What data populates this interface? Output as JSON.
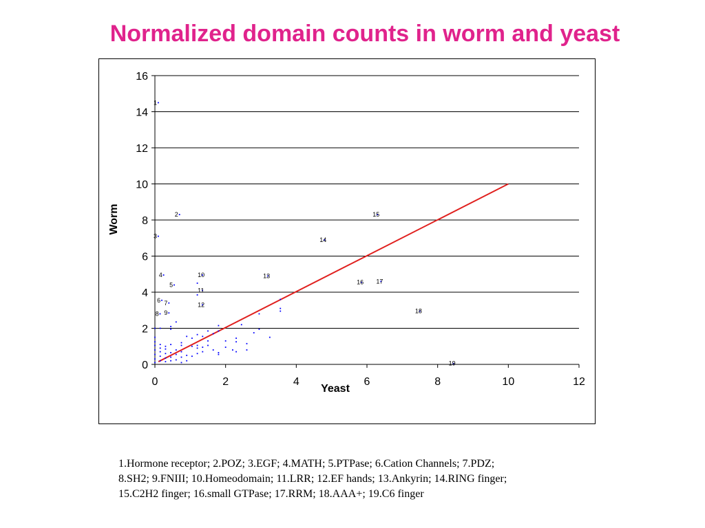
{
  "title": "Normalized domain counts in worm and yeast",
  "legend_lines": [
    "1.Hormone receptor; 2.POZ; 3.EGF; 4.MATH; 5.PTPase; 6.Cation Channels; 7.PDZ;",
    "8.SH2; 9.FNIII; 10.Homeodomain; 11.LRR; 12.EF hands; 13.Ankyrin; 14.RING finger;",
    "15.C2H2 finger; 16.small GTPase; 17.RRM; 18.AAA+; 19.C6 finger"
  ],
  "colors": {
    "title": "#e0238c",
    "points": "#0000ff",
    "trend_line": "#e0201e"
  },
  "chart_data": {
    "type": "scatter",
    "xlabel": "Yeast",
    "ylabel": "Worm",
    "xlim": [
      0,
      12
    ],
    "ylim": [
      0,
      16
    ],
    "x_ticks": [
      "0",
      "2",
      "4",
      "6",
      "8",
      "10",
      "12"
    ],
    "y_ticks": [
      "0",
      "2",
      "4",
      "6",
      "8",
      "10",
      "12",
      "14",
      "16"
    ],
    "grid": "horizontal",
    "trend_line": {
      "x": [
        0.1,
        10
      ],
      "y": [
        0.15,
        10
      ]
    },
    "labeled_points": [
      {
        "label": "1",
        "x": 0.0,
        "y": 14.5
      },
      {
        "label": "2",
        "x": 0.6,
        "y": 8.3
      },
      {
        "label": "3",
        "x": 0.0,
        "y": 7.1
      },
      {
        "label": "4",
        "x": 0.15,
        "y": 4.95
      },
      {
        "label": "5",
        "x": 0.45,
        "y": 4.4
      },
      {
        "label": "6",
        "x": 0.1,
        "y": 3.55
      },
      {
        "label": "7",
        "x": 0.3,
        "y": 3.4
      },
      {
        "label": "8",
        "x": 0.05,
        "y": 2.8
      },
      {
        "label": "9",
        "x": 0.3,
        "y": 2.85
      },
      {
        "label": "10",
        "x": 1.25,
        "y": 4.95
      },
      {
        "label": "11",
        "x": 1.25,
        "y": 4.1
      },
      {
        "label": "12",
        "x": 1.25,
        "y": 3.3
      },
      {
        "label": "13",
        "x": 3.1,
        "y": 4.9
      },
      {
        "label": "14",
        "x": 4.7,
        "y": 6.9
      },
      {
        "label": "15",
        "x": 6.2,
        "y": 8.3
      },
      {
        "label": "16",
        "x": 5.75,
        "y": 4.55
      },
      {
        "label": "17",
        "x": 6.3,
        "y": 4.6
      },
      {
        "label": "18",
        "x": 7.4,
        "y": 2.95
      },
      {
        "label": "19",
        "x": 8.35,
        "y": 0.05
      }
    ],
    "points": [
      [
        0.0,
        0.1
      ],
      [
        0.0,
        0.3
      ],
      [
        0.0,
        0.55
      ],
      [
        0.0,
        0.8
      ],
      [
        0.0,
        1.05
      ],
      [
        0.0,
        1.25
      ],
      [
        0.0,
        1.5
      ],
      [
        0.0,
        2.0
      ],
      [
        0.15,
        0.2
      ],
      [
        0.15,
        0.45
      ],
      [
        0.15,
        0.7
      ],
      [
        0.15,
        0.9
      ],
      [
        0.15,
        1.1
      ],
      [
        0.15,
        2.0
      ],
      [
        0.3,
        0.15
      ],
      [
        0.3,
        0.35
      ],
      [
        0.3,
        0.6
      ],
      [
        0.3,
        0.85
      ],
      [
        0.3,
        1.0
      ],
      [
        0.45,
        0.2
      ],
      [
        0.45,
        0.4
      ],
      [
        0.45,
        0.65
      ],
      [
        0.45,
        1.1
      ],
      [
        0.45,
        1.95
      ],
      [
        0.45,
        2.1
      ],
      [
        0.6,
        0.25
      ],
      [
        0.6,
        0.55
      ],
      [
        0.6,
        0.8
      ],
      [
        0.6,
        2.35
      ],
      [
        0.75,
        0.1
      ],
      [
        0.75,
        0.4
      ],
      [
        0.75,
        0.7
      ],
      [
        0.75,
        1.05
      ],
      [
        0.75,
        1.2
      ],
      [
        0.9,
        0.2
      ],
      [
        0.9,
        0.5
      ],
      [
        0.9,
        1.55
      ],
      [
        1.05,
        0.45
      ],
      [
        1.05,
        1.0
      ],
      [
        1.05,
        1.45
      ],
      [
        1.2,
        0.6
      ],
      [
        1.2,
        0.9
      ],
      [
        1.2,
        1.05
      ],
      [
        1.2,
        1.65
      ],
      [
        1.2,
        4.5
      ],
      [
        1.2,
        3.85
      ],
      [
        1.35,
        0.7
      ],
      [
        1.35,
        0.95
      ],
      [
        1.35,
        1.55
      ],
      [
        1.5,
        1.05
      ],
      [
        1.5,
        1.3
      ],
      [
        1.5,
        1.85
      ],
      [
        1.65,
        0.8
      ],
      [
        1.65,
        1.7
      ],
      [
        1.8,
        0.55
      ],
      [
        1.8,
        0.65
      ],
      [
        1.8,
        1.85
      ],
      [
        1.8,
        2.15
      ],
      [
        2.0,
        1.3
      ],
      [
        2.0,
        0.95
      ],
      [
        2.2,
        0.8
      ],
      [
        2.3,
        0.7
      ],
      [
        2.3,
        1.25
      ],
      [
        2.3,
        1.45
      ],
      [
        2.45,
        2.2
      ],
      [
        2.6,
        0.8
      ],
      [
        2.6,
        1.15
      ],
      [
        2.8,
        1.75
      ],
      [
        2.95,
        1.95
      ],
      [
        2.95,
        2.8
      ],
      [
        3.25,
        1.5
      ],
      [
        3.55,
        2.95
      ],
      [
        3.55,
        3.1
      ],
      [
        3.55,
        3.6
      ]
    ]
  }
}
